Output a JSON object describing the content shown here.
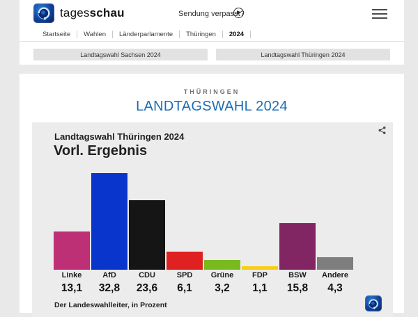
{
  "header": {
    "brand_regular": "tages",
    "brand_bold": "schau",
    "sendung_verpasst": "Sendung verpasst?"
  },
  "breadcrumb": {
    "items": [
      "Startseite",
      "Wahlen",
      "Länderparlamente",
      "Thüringen",
      "2024"
    ]
  },
  "quick_links": {
    "left": "Landtagswahl Sachsen 2024",
    "right": "Landtagswahl Thüringen 2024"
  },
  "page": {
    "kicker": "THÜRINGEN",
    "title": "LANDTAGSWAHL 2024",
    "title_color": "#1c6cb5"
  },
  "chart_card": {
    "subtitle": "Landtagswahl Thüringen 2024",
    "title": "Vorl. Ergebnis",
    "source": "Der Landeswahlleiter, in Prozent"
  },
  "chart_data": {
    "type": "bar",
    "title": "Vorl. Ergebnis",
    "subtitle": "Landtagswahl Thüringen 2024",
    "categories": [
      "Linke",
      "AfD",
      "CDU",
      "SPD",
      "Grüne",
      "FDP",
      "BSW",
      "Andere"
    ],
    "values": [
      13.1,
      32.8,
      23.6,
      6.1,
      3.2,
      1.1,
      15.8,
      4.3
    ],
    "value_labels": [
      "13,1",
      "32,8",
      "23,6",
      "6,1",
      "3,2",
      "1,1",
      "15,8",
      "4,3"
    ],
    "colors": [
      "#be3075",
      "#0a35cd",
      "#151515",
      "#e02121",
      "#79ba1f",
      "#f8cd12",
      "#822563",
      "#7e7e7e"
    ],
    "unit": "Prozent",
    "source": "Der Landeswahlleiter, in Prozent",
    "xlabel": "",
    "ylabel": "",
    "ylim": [
      0,
      35
    ],
    "grid": false,
    "legend": "none"
  }
}
